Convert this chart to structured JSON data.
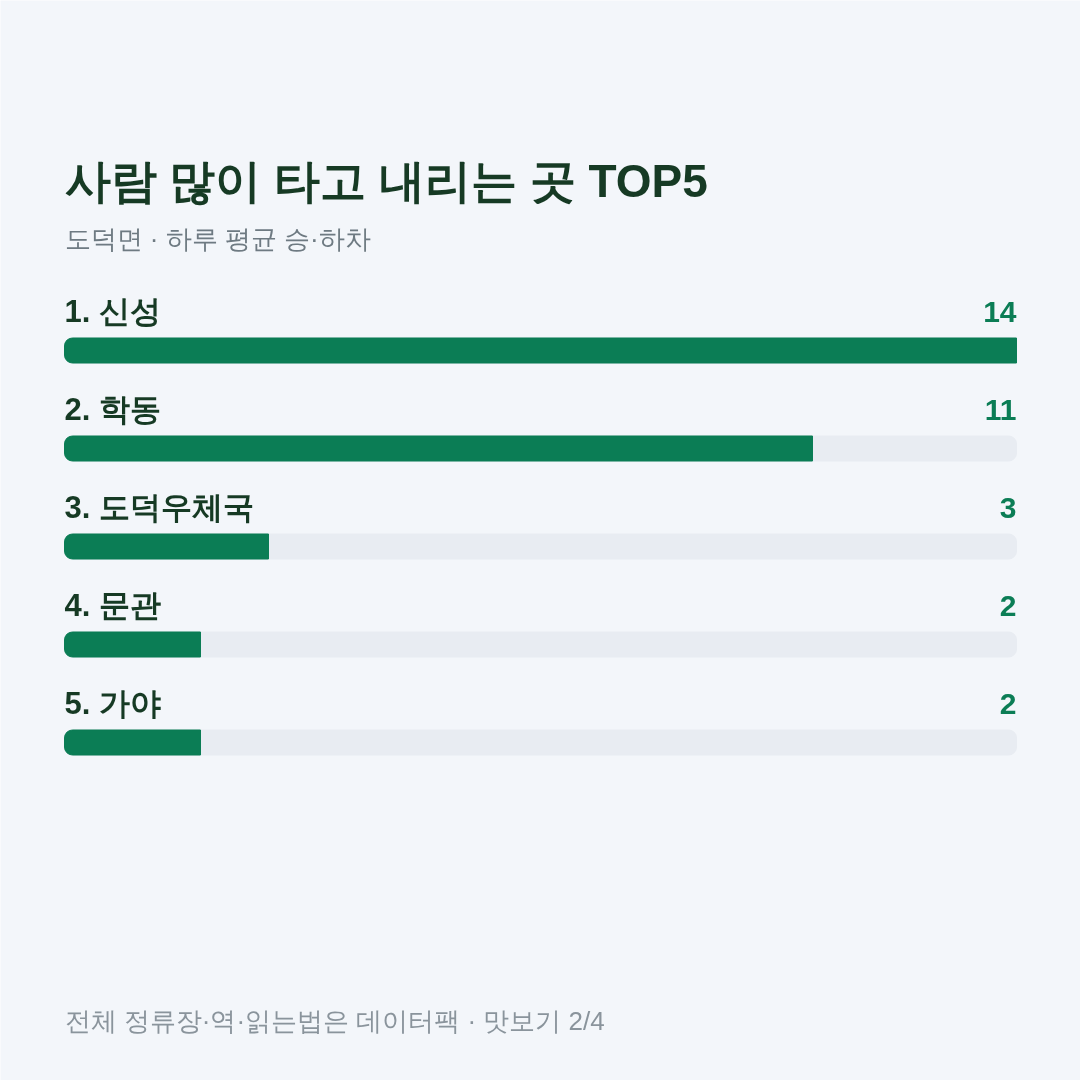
{
  "chart_data": {
    "type": "bar",
    "orientation": "horizontal",
    "title": "사람 많이 타고 내리는 곳 TOP5",
    "subtitle": "도덕면 · 하루 평균 승·하차",
    "categories": [
      "1. 신성",
      "2. 학동",
      "3. 도덕우체국",
      "4. 문관",
      "5. 가야"
    ],
    "values": [
      14,
      11,
      3,
      2,
      2
    ],
    "color": "#0b7d55",
    "data_labels": true,
    "annotations": [
      "전체 정류장·역·읽는법은 데이터팩 · 맛보기 2/4"
    ]
  }
}
